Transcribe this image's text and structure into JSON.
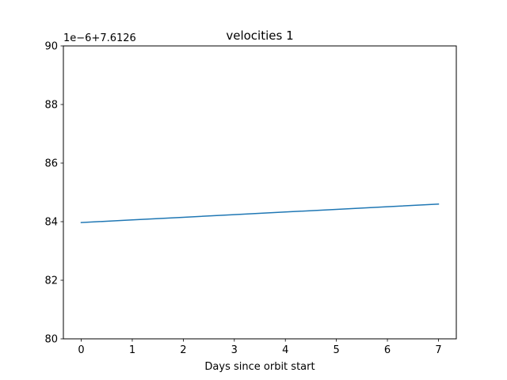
{
  "chart_data": {
    "type": "line",
    "title": "velocities 1",
    "xlabel": "Days since orbit start",
    "ylabel": "",
    "offset_text": "1e−6+7.6126",
    "x": [
      0,
      1,
      2,
      3,
      4,
      5,
      6,
      7
    ],
    "x_ticks": [
      0,
      1,
      2,
      3,
      4,
      5,
      6,
      7
    ],
    "y_ticks": [
      80,
      82,
      84,
      86,
      88,
      90
    ],
    "xlim": [
      -0.35,
      7.35
    ],
    "ylim": [
      80,
      90
    ],
    "grid": false,
    "series": [
      {
        "values": [
          83.97,
          84.06,
          84.15,
          84.24,
          84.33,
          84.42,
          84.51,
          84.6
        ],
        "color": "#1f77b4"
      }
    ]
  }
}
